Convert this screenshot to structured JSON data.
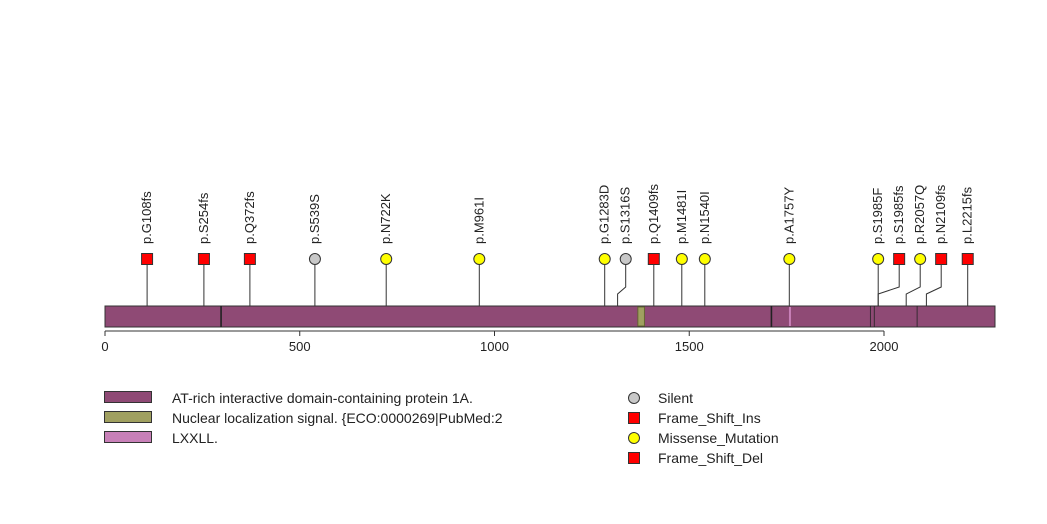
{
  "chart_data": {
    "type": "lollipop",
    "protein": "AT-rich interactive domain-containing protein 1A",
    "x_axis": {
      "min": 0,
      "max": 2285,
      "ticks": [
        0,
        500,
        1000,
        1500,
        2000
      ],
      "tick_labels": [
        "0",
        "500",
        "1000",
        "1500",
        "2000"
      ]
    },
    "backbone_color": "#8f4a75",
    "domains": [
      {
        "name": "AT-rich interactive domain-containing protein 1A.",
        "start": 0,
        "end": 2285,
        "color": "#8f4a75"
      },
      {
        "name": "Nuclear localization signal. {ECO:0000269|PubMed:2",
        "start": 1368,
        "end": 1385,
        "color": "#a0a060"
      },
      {
        "name": "LXXLL.",
        "start": 1756,
        "end": 1760,
        "color": "#c880b8"
      }
    ],
    "backbone_markers": [
      298,
      1711,
      1965,
      1975,
      2085
    ],
    "mutations": [
      {
        "label": "p.G108fs",
        "position": 108,
        "type": "Frame_Shift_Del"
      },
      {
        "label": "p.S254fs",
        "position": 254,
        "type": "Frame_Shift_Del"
      },
      {
        "label": "p.Q372fs",
        "position": 372,
        "type": "Frame_Shift_Del"
      },
      {
        "label": "p.S539S",
        "position": 539,
        "type": "Silent"
      },
      {
        "label": "p.N722K",
        "position": 722,
        "type": "Missense_Mutation"
      },
      {
        "label": "p.M961I",
        "position": 961,
        "type": "Missense_Mutation"
      },
      {
        "label": "p.G1283D",
        "position": 1283,
        "type": "Missense_Mutation"
      },
      {
        "label": "p.S1316S",
        "position": 1316,
        "type": "Silent"
      },
      {
        "label": "p.Q1409fs",
        "position": 1409,
        "type": "Frame_Shift_Del"
      },
      {
        "label": "p.M1481I",
        "position": 1481,
        "type": "Missense_Mutation"
      },
      {
        "label": "p.N1540I",
        "position": 1540,
        "type": "Missense_Mutation"
      },
      {
        "label": "p.A1757Y",
        "position": 1757,
        "type": "Missense_Mutation"
      },
      {
        "label": "p.S1985F",
        "position": 1985,
        "type": "Missense_Mutation"
      },
      {
        "label": "p.S1985fs",
        "position": 1985,
        "type": "Frame_Shift_Del"
      },
      {
        "label": "p.R2057Q",
        "position": 2057,
        "type": "Missense_Mutation"
      },
      {
        "label": "p.N2109fs",
        "position": 2109,
        "type": "Frame_Shift_Del"
      },
      {
        "label": "p.L2215fs",
        "position": 2215,
        "type": "Frame_Shift_Del"
      }
    ],
    "domain_legend": [
      {
        "label": "AT-rich interactive domain-containing protein 1A.",
        "color": "#8f4a75"
      },
      {
        "label": "Nuclear localization signal. {ECO:0000269|PubMed:2",
        "color": "#a0a060"
      },
      {
        "label": "LXXLL.",
        "color": "#c880b8"
      }
    ],
    "mutation_legend": [
      {
        "label": "Silent",
        "shape": "circle",
        "color": "#c8c8c8"
      },
      {
        "label": "Frame_Shift_Ins",
        "shape": "square",
        "color": "#ff0000"
      },
      {
        "label": "Missense_Mutation",
        "shape": "circle",
        "color": "#ffff00"
      },
      {
        "label": "Frame_Shift_Del",
        "shape": "square",
        "color": "#ff0000"
      }
    ],
    "type_styles": {
      "Silent": {
        "shape": "circle",
        "color": "#c8c8c8"
      },
      "Missense_Mutation": {
        "shape": "circle",
        "color": "#ffff00"
      },
      "Frame_Shift_Del": {
        "shape": "square",
        "color": "#ff0000"
      },
      "Frame_Shift_Ins": {
        "shape": "square",
        "color": "#ff0000"
      }
    }
  }
}
